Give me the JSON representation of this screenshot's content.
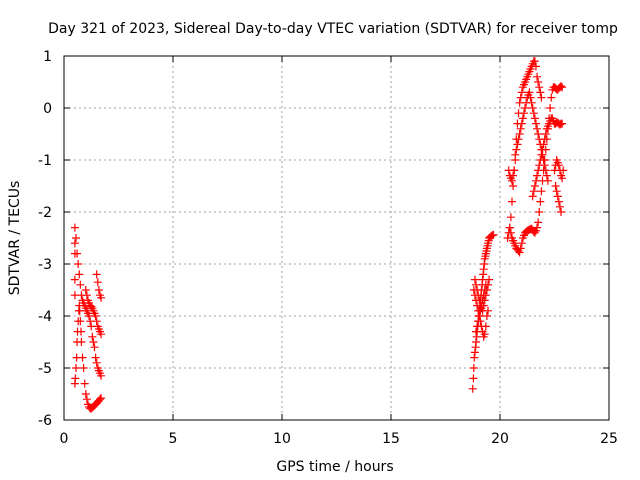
{
  "chart_data": {
    "type": "scatter",
    "title": "Day 321 of 2023, Sidereal Day-to-day VTEC variation (SDTVAR) for receiver tomp",
    "xlabel": "GPS time / hours",
    "ylabel": "SDTVAR / TECUs",
    "xlim": [
      0,
      25
    ],
    "ylim": [
      -6,
      1
    ],
    "xticks": [
      0,
      5,
      10,
      15,
      20,
      25
    ],
    "yticks": [
      -6,
      -5,
      -4,
      -3,
      -2,
      -1,
      0,
      1
    ],
    "xtick_labels": [
      "0",
      "5",
      "10",
      "15",
      "20",
      "25"
    ],
    "ytick_labels": [
      "-6",
      "-5",
      "-4",
      "-3",
      "-2",
      "-1",
      "0",
      "1"
    ],
    "grid": true,
    "marker": "+",
    "color": "#ff0000",
    "series": [
      {
        "name": "SDTVAR",
        "x": [
          0.5,
          0.52,
          0.55,
          0.58,
          0.6,
          0.62,
          0.65,
          0.68,
          0.7,
          0.72,
          0.75,
          0.78,
          0.8,
          0.85,
          0.9,
          0.95,
          1.0,
          1.05,
          1.1,
          1.15,
          1.2,
          1.25,
          1.3,
          1.35,
          1.4,
          1.45,
          1.5,
          1.55,
          1.6,
          1.65,
          1.7,
          0.5,
          0.55,
          0.6,
          0.65,
          0.7,
          0.75,
          0.8,
          0.85,
          0.9,
          0.95,
          1.0,
          1.05,
          1.1,
          1.15,
          1.2,
          1.25,
          1.3,
          1.35,
          1.4,
          1.45,
          1.5,
          1.55,
          1.6,
          1.65,
          1.7,
          1.0,
          1.05,
          1.1,
          1.15,
          1.2,
          1.25,
          1.3,
          1.35,
          1.4,
          1.45,
          1.5,
          1.55,
          1.6,
          1.65,
          1.7,
          1.5,
          1.55,
          1.6,
          1.65,
          1.7,
          0.5,
          0.5,
          0.5,
          0.5,
          18.75,
          18.78,
          18.8,
          18.82,
          18.85,
          18.88,
          18.9,
          18.93,
          18.95,
          18.98,
          19.0,
          19.03,
          19.05,
          19.08,
          19.1,
          19.13,
          19.15,
          19.18,
          19.2,
          19.23,
          19.25,
          19.28,
          19.3,
          19.33,
          19.35,
          19.38,
          19.4,
          19.43,
          19.45,
          19.48,
          19.5,
          19.55,
          19.6,
          19.65,
          19.7,
          18.8,
          18.85,
          18.9,
          18.95,
          19.0,
          19.05,
          19.1,
          19.15,
          19.2,
          19.25,
          19.3,
          19.35,
          19.4,
          19.45,
          18.85,
          18.9,
          18.95,
          19.0,
          19.05,
          19.1,
          19.15,
          19.2,
          19.25,
          19.3,
          19.35,
          19.4,
          19.45,
          19.5,
          18.9,
          18.95,
          19.0,
          19.05,
          19.1,
          19.15,
          19.2,
          19.25,
          19.3,
          19.35,
          20.35,
          20.4,
          20.45,
          20.5,
          20.55,
          20.6,
          20.65,
          20.7,
          20.75,
          20.8,
          20.85,
          20.9,
          20.95,
          21.0,
          21.05,
          21.1,
          21.15,
          21.2,
          21.25,
          21.3,
          21.35,
          21.4,
          21.45,
          21.5,
          21.55,
          21.6,
          21.65,
          21.7,
          21.75,
          21.8,
          21.85,
          21.9,
          20.4,
          20.45,
          20.5,
          20.55,
          20.6,
          20.65,
          20.7,
          20.75,
          20.8,
          20.85,
          20.9,
          20.95,
          21.0,
          21.05,
          21.1,
          21.15,
          21.2,
          21.25,
          21.3,
          21.35,
          21.4,
          21.45,
          21.5,
          21.55,
          21.6,
          21.65,
          21.7,
          21.75,
          21.8,
          21.85,
          21.9,
          21.95,
          22.0,
          22.05,
          22.1,
          22.15,
          22.2,
          20.45,
          20.5,
          20.55,
          20.6,
          20.65,
          20.7,
          20.75,
          20.8,
          20.85,
          20.9,
          20.95,
          21.0,
          21.05,
          21.1,
          21.15,
          21.2,
          21.25,
          21.3,
          21.35,
          21.4,
          21.45,
          21.5,
          21.55,
          21.6,
          21.65,
          21.7,
          21.75,
          21.8,
          21.85,
          21.9,
          21.95,
          22.0,
          22.05,
          22.1,
          22.15,
          22.2,
          22.25,
          22.3,
          22.35,
          22.4,
          22.45,
          22.5,
          22.55,
          22.6,
          22.65,
          22.7,
          22.75,
          22.8,
          22.85,
          21.5,
          21.55,
          21.6,
          21.65,
          21.7,
          21.75,
          21.8,
          21.85,
          21.9,
          21.95,
          22.0,
          22.05,
          22.1,
          22.15,
          22.2,
          22.25,
          22.3,
          22.35,
          22.4,
          22.45,
          22.5,
          22.55,
          22.6,
          22.65,
          22.7,
          22.75,
          22.8,
          22.85,
          22.5,
          22.55,
          22.6,
          22.65,
          22.7,
          22.75,
          22.8,
          22.85,
          22.9,
          22.55,
          22.6,
          22.65,
          22.7,
          22.75,
          22.8
        ],
        "y": [
          -5.3,
          -5.2,
          -5.0,
          -4.8,
          -4.5,
          -4.3,
          -4.1,
          -3.9,
          -3.8,
          -3.9,
          -4.1,
          -4.3,
          -4.5,
          -4.8,
          -5.0,
          -5.3,
          -5.5,
          -5.6,
          -5.7,
          -5.75,
          -5.78,
          -5.78,
          -5.76,
          -5.74,
          -5.72,
          -5.7,
          -5.68,
          -5.65,
          -5.63,
          -5.6,
          -5.58,
          -2.3,
          -2.5,
          -2.8,
          -3.0,
          -3.2,
          -3.4,
          -3.6,
          -3.7,
          -3.75,
          -3.8,
          -3.85,
          -3.9,
          -3.95,
          -4.0,
          -4.1,
          -4.2,
          -4.4,
          -4.5,
          -4.6,
          -4.8,
          -4.9,
          -5.0,
          -5.05,
          -5.1,
          -5.15,
          -3.5,
          -3.6,
          -3.7,
          -3.75,
          -3.8,
          -3.82,
          -3.85,
          -3.9,
          -3.95,
          -4.0,
          -4.1,
          -4.2,
          -4.25,
          -4.3,
          -4.35,
          -3.2,
          -3.35,
          -3.5,
          -3.6,
          -3.65,
          -2.6,
          -2.8,
          -3.3,
          -3.6,
          -5.4,
          -5.2,
          -5.0,
          -4.8,
          -4.7,
          -4.6,
          -4.5,
          -4.4,
          -4.3,
          -4.2,
          -4.1,
          -4.0,
          -3.9,
          -3.8,
          -3.7,
          -3.6,
          -3.5,
          -3.4,
          -3.3,
          -3.2,
          -3.1,
          -3.0,
          -2.9,
          -2.85,
          -2.8,
          -2.75,
          -2.7,
          -2.65,
          -2.6,
          -2.55,
          -2.5,
          -2.48,
          -2.46,
          -2.45,
          -2.44,
          -3.5,
          -3.6,
          -3.7,
          -3.8,
          -3.9,
          -4.0,
          -4.1,
          -4.2,
          -4.3,
          -4.4,
          -4.35,
          -4.2,
          -4.0,
          -3.9,
          -3.3,
          -3.4,
          -3.5,
          -3.6,
          -3.7,
          -3.8,
          -3.85,
          -3.9,
          -3.8,
          -3.7,
          -3.6,
          -3.5,
          -3.4,
          -3.3,
          -4.3,
          -4.2,
          -4.1,
          -4.0,
          -3.9,
          -3.8,
          -3.7,
          -3.6,
          -3.5,
          -3.4,
          -2.5,
          -2.4,
          -2.3,
          -2.1,
          -1.8,
          -1.5,
          -1.2,
          -0.9,
          -0.6,
          -0.3,
          -0.1,
          0.1,
          0.2,
          0.3,
          0.4,
          0.45,
          0.5,
          0.55,
          0.6,
          0.65,
          0.7,
          0.75,
          0.8,
          0.85,
          0.9,
          0.9,
          0.8,
          0.6,
          0.5,
          0.4,
          0.3,
          0.2,
          -1.2,
          -1.3,
          -1.35,
          -1.4,
          -1.3,
          -1.2,
          -1.0,
          -0.8,
          -0.7,
          -0.6,
          -0.5,
          -0.4,
          -0.3,
          -0.2,
          -0.1,
          0.0,
          0.1,
          0.2,
          0.25,
          0.3,
          0.2,
          0.1,
          0.0,
          -0.1,
          -0.2,
          -0.3,
          -0.4,
          -0.5,
          -0.6,
          -0.7,
          -0.8,
          -0.9,
          -1.0,
          -1.1,
          -1.2,
          -1.3,
          -1.4,
          -2.3,
          -2.4,
          -2.5,
          -2.55,
          -2.6,
          -2.65,
          -2.7,
          -2.72,
          -2.75,
          -2.78,
          -2.7,
          -2.6,
          -2.5,
          -2.45,
          -2.4,
          -2.38,
          -2.36,
          -2.35,
          -2.34,
          -2.33,
          -2.32,
          -2.35,
          -2.38,
          -2.4,
          -2.36,
          -2.3,
          -2.2,
          -2.0,
          -1.8,
          -1.6,
          -1.4,
          -1.2,
          -1.0,
          -0.8,
          -0.6,
          -0.4,
          -0.2,
          0.0,
          0.2,
          0.35,
          0.4,
          0.4,
          0.38,
          0.36,
          0.35,
          0.38,
          0.4,
          0.42,
          0.4,
          -1.7,
          -1.6,
          -1.5,
          -1.4,
          -1.3,
          -1.2,
          -1.1,
          -1.0,
          -0.9,
          -0.8,
          -0.7,
          -0.6,
          -0.5,
          -0.4,
          -0.35,
          -0.3,
          -0.25,
          -0.2,
          -0.2,
          -0.25,
          -0.3,
          -0.3,
          -0.28,
          -0.28,
          -0.3,
          -0.32,
          -0.3,
          -0.3,
          -1.2,
          -1.1,
          -1.0,
          -1.05,
          -1.1,
          -1.2,
          -1.3,
          -1.35,
          -1.2,
          -1.5,
          -1.6,
          -1.7,
          -1.8,
          -1.9,
          -2.0
        ]
      }
    ]
  }
}
